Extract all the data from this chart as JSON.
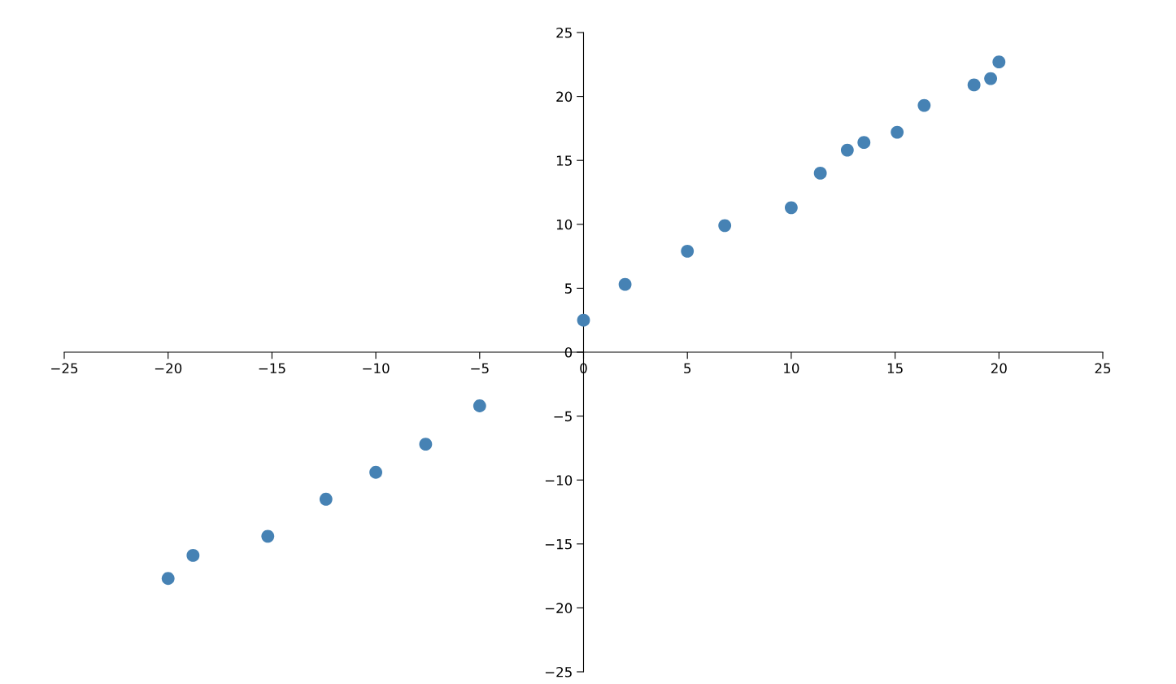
{
  "chart_data": {
    "type": "scatter",
    "color": "#4682b4",
    "marker": "circle",
    "grid": false,
    "x": [
      -20,
      -18.8,
      -15.2,
      -12.4,
      -10,
      -7.6,
      -5,
      0,
      2,
      5,
      6.8,
      10,
      11.4,
      12.7,
      13.5,
      15.1,
      16.4,
      18.8,
      19.6,
      20
    ],
    "values": [
      -17.7,
      -15.9,
      -14.4,
      -11.5,
      -9.4,
      -7.2,
      -4.2,
      2.5,
      5.3,
      7.9,
      9.9,
      11.3,
      14,
      15.8,
      16.4,
      17.2,
      19.3,
      20.9,
      21.4,
      22.7
    ],
    "xlim": [
      -25,
      25
    ],
    "ylim": [
      -25,
      25
    ],
    "xticks": [
      {
        "value": -25,
        "label": "−25"
      },
      {
        "value": -20,
        "label": "−20"
      },
      {
        "value": -15,
        "label": "−15"
      },
      {
        "value": -10,
        "label": "−10"
      },
      {
        "value": -5,
        "label": "−5"
      },
      0,
      5,
      10,
      15,
      20,
      25
    ],
    "yticks": [
      {
        "value": -25,
        "label": "−25"
      },
      {
        "value": -20,
        "label": "−20"
      },
      {
        "value": -15,
        "label": "−15"
      },
      {
        "value": -10,
        "label": "−10"
      },
      {
        "value": -5,
        "label": "−5"
      },
      0,
      5,
      10,
      15,
      20,
      25
    ]
  }
}
